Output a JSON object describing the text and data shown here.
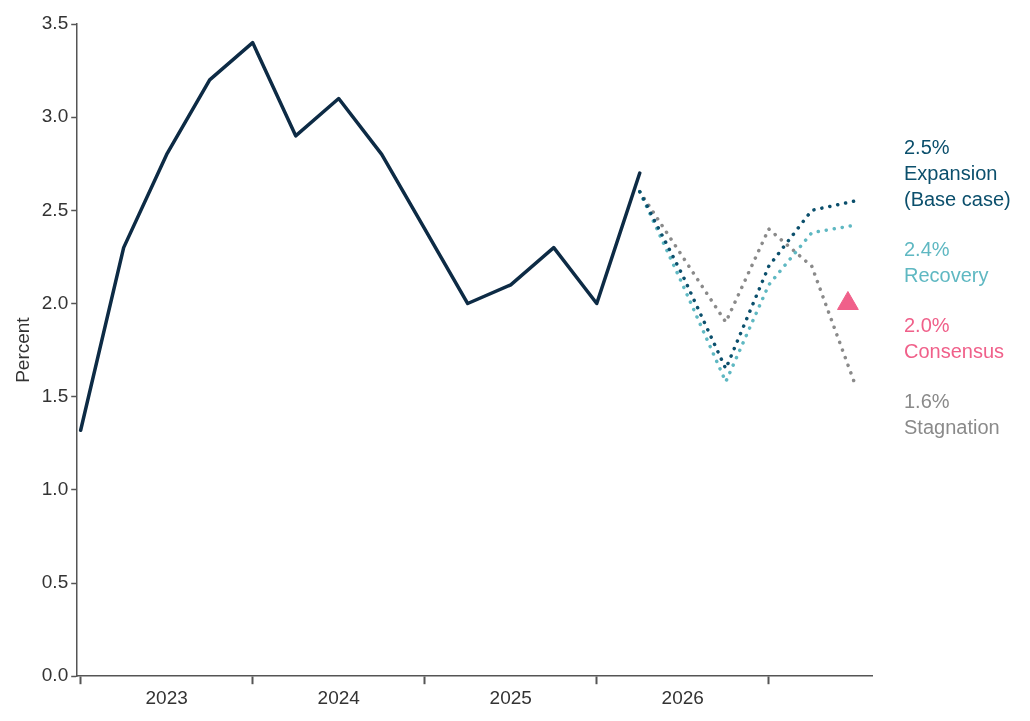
{
  "chart_data": {
    "type": "line",
    "ylabel": "Percent",
    "xlim": [
      2022.98,
      2027.6
    ],
    "ylim": [
      0,
      3.5
    ],
    "yticks": [
      {
        "value": 0,
        "label": "0.0"
      },
      {
        "value": 0.5,
        "label": "0.5"
      },
      {
        "value": 1,
        "label": "1.0"
      },
      {
        "value": 1.5,
        "label": "1.5"
      },
      {
        "value": 2,
        "label": "2.0"
      },
      {
        "value": 2.5,
        "label": "2.5"
      },
      {
        "value": 3,
        "label": "3.0"
      },
      {
        "value": 3.5,
        "label": "3.5"
      }
    ],
    "xticks": [
      {
        "value": 2023,
        "label": null
      },
      {
        "value": 2023.5,
        "label": "2023"
      },
      {
        "value": 2024,
        "label": null
      },
      {
        "value": 2024.5,
        "label": "2024"
      },
      {
        "value": 2025,
        "label": null
      },
      {
        "value": 2025.5,
        "label": "2025"
      },
      {
        "value": 2026,
        "label": null
      },
      {
        "value": 2026.5,
        "label": "2026"
      },
      {
        "value": 2027,
        "label": null
      }
    ],
    "grid": false,
    "legend": false,
    "marker": "none",
    "series": [
      {
        "color": "#0d2b45",
        "line_style": "solid",
        "x": [
          2023,
          2023.25,
          2023.5,
          2023.75,
          2024,
          2024.25,
          2024.5,
          2024.75,
          2025,
          2025.25,
          2025.5,
          2025.75,
          2026,
          2026.25
        ],
        "values": [
          1.32,
          2.3,
          2.8,
          3.2,
          3.4,
          2.9,
          3.1,
          2.8,
          2.4,
          2.0,
          2.1,
          2.3,
          2.0,
          2.7
        ]
      },
      {
        "name": "Expansion (Base case)",
        "color": "#0b4f6c",
        "line_style": "dotted",
        "x": [
          2026.25,
          2026.5,
          2026.75,
          2027,
          2027.25,
          2027.5
        ],
        "values": [
          2.6,
          2.15,
          1.65,
          2.2,
          2.5,
          2.55
        ]
      },
      {
        "name": "Recovery",
        "color": "#5fb8c2",
        "line_style": "dotted",
        "x": [
          2026.25,
          2026.5,
          2026.75,
          2027,
          2027.25,
          2027.5
        ],
        "values": [
          2.6,
          2.1,
          1.58,
          2.1,
          2.38,
          2.42
        ]
      },
      {
        "name": "Consensus",
        "type": "scatter",
        "marker": "triangle",
        "color": "#f0608a",
        "x": [
          2027.46
        ],
        "values": [
          2.0
        ]
      },
      {
        "name": "Stagnation",
        "color": "#8a8a8a",
        "line_style": "dotted",
        "x": [
          2026.25,
          2026.5,
          2026.75,
          2027,
          2027.25,
          2027.5
        ],
        "values": [
          2.6,
          2.25,
          1.9,
          2.4,
          2.2,
          1.57
        ]
      }
    ],
    "annotations": [
      "2.5%",
      "2.4%",
      "2.0%",
      "1.6%"
    ]
  }
}
